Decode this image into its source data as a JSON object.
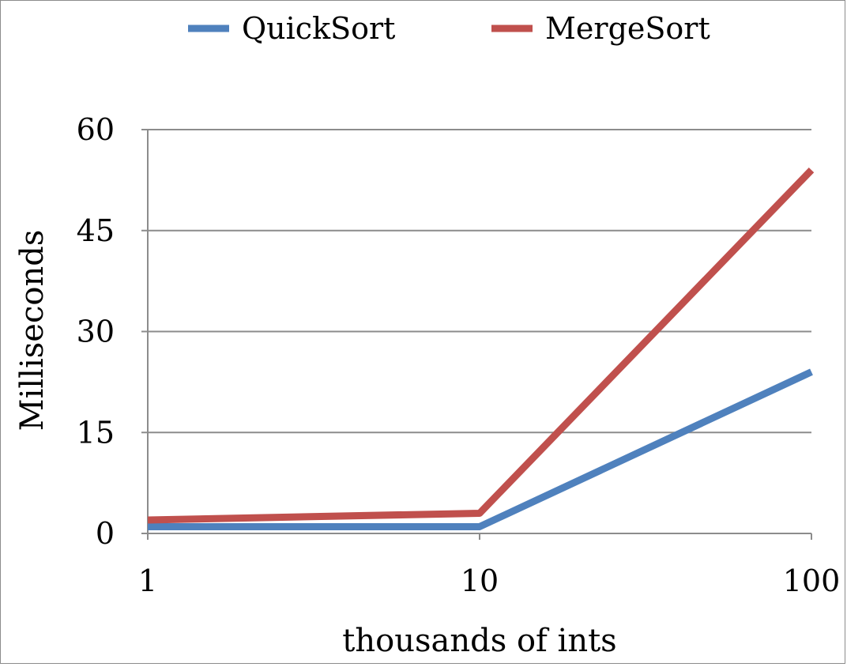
{
  "chart_data": {
    "type": "line",
    "xlabel": "thousands of ints",
    "ylabel": "Milliseconds",
    "x": [
      1,
      10,
      100
    ],
    "x_tick_labels": [
      "1",
      "10",
      "100"
    ],
    "x_scale": "log",
    "ylim": [
      0,
      60
    ],
    "y_ticks": [
      0,
      15,
      30,
      45,
      60
    ],
    "y_tick_labels": [
      "0",
      "15",
      "30",
      "45",
      "60"
    ],
    "grid": true,
    "legend_position": "top",
    "series": [
      {
        "name": "QuickSort",
        "values": [
          1,
          1,
          24
        ],
        "color": "#4f81bd"
      },
      {
        "name": "MergeSort",
        "values": [
          2,
          3,
          54
        ],
        "color": "#c0504d"
      }
    ]
  }
}
